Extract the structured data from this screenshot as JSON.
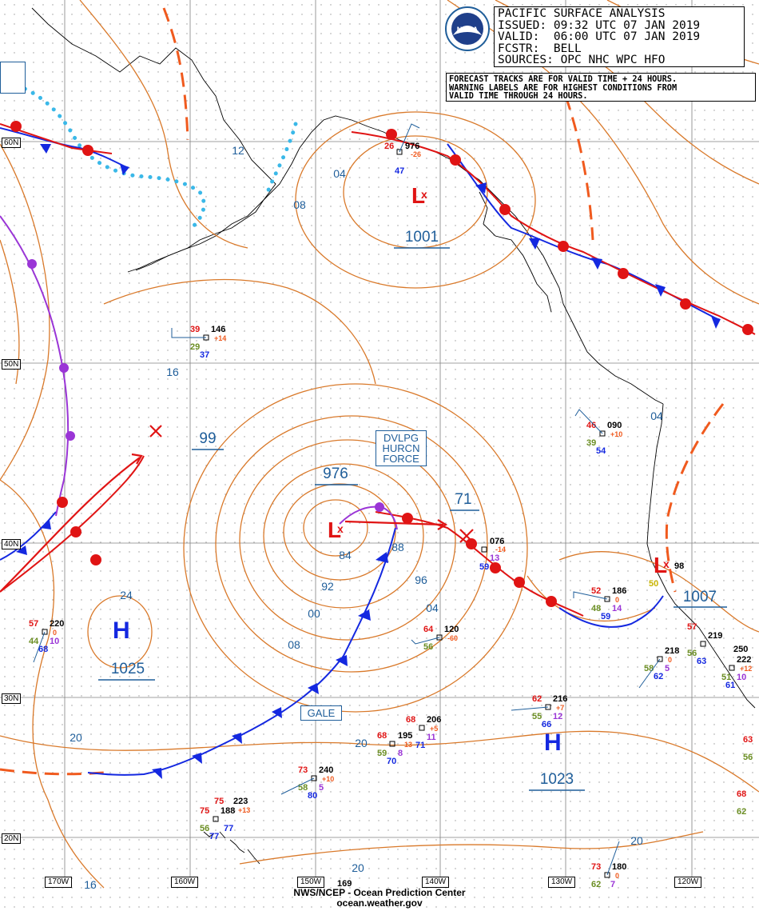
{
  "info_box": {
    "title": "PACIFIC SURFACE ANALYSIS",
    "issued": "ISSUED: 09:32 UTC 07 JAN 2019",
    "valid": "VALID:  06:00 UTC 07 JAN 2019",
    "forecaster": "FCSTR:  BELL",
    "sources": "SOURCES: OPC NHC WPC HFO"
  },
  "note": {
    "line1": "FORECAST TRACKS ARE FOR VALID TIME + 24 HOURS.",
    "line2": "WARNING LABELS ARE FOR HIGHEST CONDITIONS FROM",
    "line3": "VALID TIME THROUGH 24 HOURS."
  },
  "logo": {
    "text": "NOAA"
  },
  "footer": {
    "line1": "NWS/NCEP - Ocean Prediction Center",
    "line2": "ocean.weather.gov"
  },
  "warnings": {
    "hurricane_force": [
      "DVLPG",
      "HURCN",
      "FORCE"
    ],
    "gale": "GALE"
  },
  "pressure_centers": [
    {
      "type": "L",
      "value": "1001"
    },
    {
      "type": "L",
      "value": "976"
    },
    {
      "type": "L",
      "value": "1007"
    },
    {
      "type": "H",
      "value": "1025"
    },
    {
      "type": "H",
      "value": "1023"
    }
  ],
  "forecast_values": {
    "low_24h": "71",
    "other": "99"
  },
  "isobar_labels": [
    "12",
    "04",
    "08",
    "16",
    "84",
    "88",
    "92",
    "96",
    "00",
    "04",
    "08",
    "24",
    "20",
    "20",
    "20",
    "20",
    "16",
    "04"
  ],
  "lat_labels": [
    "60N",
    "50N",
    "40N",
    "30N",
    "20N"
  ],
  "lon_labels": [
    "170W",
    "160W",
    "150W",
    "140W",
    "130W",
    "120W"
  ],
  "stations": [
    {
      "t": "39",
      "p": "146",
      "d": "29",
      "tend": "+14",
      "v": "37"
    },
    {
      "t": "26",
      "p": "976",
      "d": "",
      "tend": "-26",
      "v": "47"
    },
    {
      "t": "46",
      "p": "090",
      "d": "39",
      "tend": "+10",
      "v": "54"
    },
    {
      "t": "",
      "p": "076",
      "d": "",
      "tend": "-14",
      "v": "59",
      "extra": "13"
    },
    {
      "t": "52",
      "p": "186",
      "d": "48",
      "tend": "0",
      "v": "59",
      "extra": "14"
    },
    {
      "t": "64",
      "p": "120",
      "d": "56",
      "tend": "-60",
      "v": ""
    },
    {
      "t": "57",
      "p": "220",
      "d": "44",
      "tend": "0",
      "v": "68",
      "extra": "10"
    },
    {
      "t": "68",
      "p": "206",
      "d": "",
      "tend": "+5",
      "v": "71",
      "extra": "11"
    },
    {
      "t": "68",
      "p": "195",
      "d": "59",
      "tend": "13",
      "v": "70",
      "extra": "8"
    },
    {
      "t": "62",
      "p": "216",
      "d": "55",
      "tend": "+7",
      "v": "66",
      "extra": "12"
    },
    {
      "t": "73",
      "p": "240",
      "d": "58",
      "tend": "+10",
      "v": "80",
      "extra": "5"
    },
    {
      "t": "75",
      "p": "223",
      "d": "",
      "tend": "+13",
      "v": "",
      "extra": ""
    },
    {
      "t": "75",
      "p": "188",
      "d": "56",
      "tend": "",
      "v": "77",
      "extra": "77"
    },
    {
      "t": "",
      "p": "169",
      "d": "",
      "tend": "",
      "v": ""
    },
    {
      "t": "73",
      "p": "180",
      "d": "62",
      "tend": "0",
      "v": "7"
    },
    {
      "t": "",
      "p": "218",
      "d": "58",
      "tend": "0",
      "v": "62",
      "extra": "5"
    },
    {
      "t": "57",
      "p": "219",
      "d": "56",
      "tend": "",
      "v": "63"
    },
    {
      "t": "",
      "p": "250",
      "d": "",
      "tend": "",
      "v": ""
    },
    {
      "t": "",
      "p": "222",
      "d": "51",
      "tend": "+12",
      "v": "61",
      "extra": "10"
    },
    {
      "t": "63",
      "p": "",
      "d": "56",
      "tend": "",
      "v": ""
    },
    {
      "t": "68",
      "p": "",
      "d": "62",
      "tend": "",
      "v": ""
    },
    {
      "t": "",
      "p": "98",
      "d": "50",
      "tend": "",
      "v": ""
    }
  ],
  "colors": {
    "isobar": "#d9792a",
    "cold_front": "#1428e0",
    "warm_front": "#e01414",
    "occluded_front": "#9a35d6",
    "trough": "#f05a1e",
    "ice_edge": "#3ab8e8",
    "label_blue": "#1f5e9a",
    "land": "#000000",
    "grid": "#8a8a8a"
  }
}
